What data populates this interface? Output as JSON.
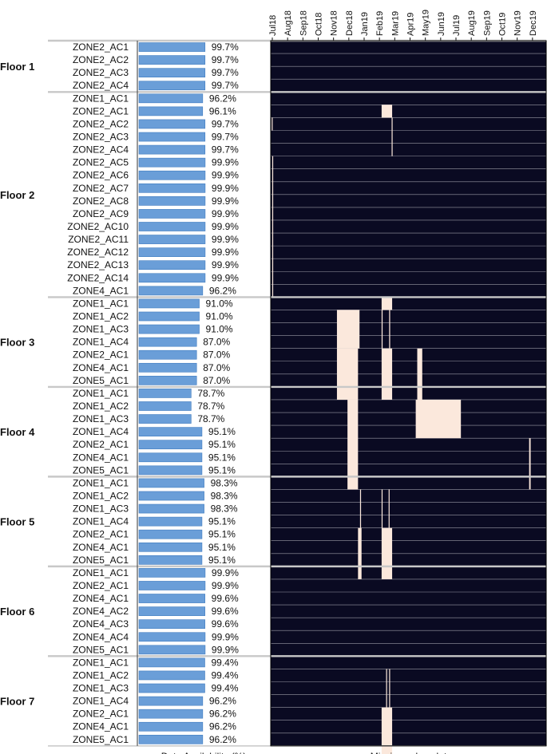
{
  "chart_data": [
    {
      "type": "bar",
      "xlabel": "Data Availability (%)",
      "floors": [
        {
          "name": "Floor 1",
          "rows": [
            {
              "zone": "ZONE2_AC1",
              "pct": 99.7,
              "label": "99.7%"
            },
            {
              "zone": "ZONE2_AC2",
              "pct": 99.7,
              "label": "99.7%"
            },
            {
              "zone": "ZONE2_AC3",
              "pct": 99.7,
              "label": "99.7%"
            },
            {
              "zone": "ZONE2_AC4",
              "pct": 99.7,
              "label": "99.7%"
            }
          ]
        },
        {
          "name": "Floor 2",
          "rows": [
            {
              "zone": "ZONE1_AC1",
              "pct": 96.2,
              "label": "96.2%"
            },
            {
              "zone": "ZONE2_AC1",
              "pct": 96.1,
              "label": "96.1%"
            },
            {
              "zone": "ZONE2_AC2",
              "pct": 99.7,
              "label": "99.7%"
            },
            {
              "zone": "ZONE2_AC3",
              "pct": 99.7,
              "label": "99.7%"
            },
            {
              "zone": "ZONE2_AC4",
              "pct": 99.7,
              "label": "99.7%"
            },
            {
              "zone": "ZONE2_AC5",
              "pct": 99.9,
              "label": "99.9%"
            },
            {
              "zone": "ZONE2_AC6",
              "pct": 99.9,
              "label": "99.9%"
            },
            {
              "zone": "ZONE2_AC7",
              "pct": 99.9,
              "label": "99.9%"
            },
            {
              "zone": "ZONE2_AC8",
              "pct": 99.9,
              "label": "99.9%"
            },
            {
              "zone": "ZONE2_AC9",
              "pct": 99.9,
              "label": "99.9%"
            },
            {
              "zone": "ZONE2_AC10",
              "pct": 99.9,
              "label": "99.9%"
            },
            {
              "zone": "ZONE2_AC11",
              "pct": 99.9,
              "label": "99.9%"
            },
            {
              "zone": "ZONE2_AC12",
              "pct": 99.9,
              "label": "99.9%"
            },
            {
              "zone": "ZONE2_AC13",
              "pct": 99.9,
              "label": "99.9%"
            },
            {
              "zone": "ZONE2_AC14",
              "pct": 99.9,
              "label": "99.9%"
            },
            {
              "zone": "ZONE4_AC1",
              "pct": 96.2,
              "label": "96.2%"
            }
          ]
        },
        {
          "name": "Floor 3",
          "rows": [
            {
              "zone": "ZONE1_AC1",
              "pct": 91.0,
              "label": "91.0%"
            },
            {
              "zone": "ZONE1_AC2",
              "pct": 91.0,
              "label": "91.0%"
            },
            {
              "zone": "ZONE1_AC3",
              "pct": 91.0,
              "label": "91.0%"
            },
            {
              "zone": "ZONE1_AC4",
              "pct": 87.0,
              "label": "87.0%"
            },
            {
              "zone": "ZONE2_AC1",
              "pct": 87.0,
              "label": "87.0%"
            },
            {
              "zone": "ZONE4_AC1",
              "pct": 87.0,
              "label": "87.0%"
            },
            {
              "zone": "ZONE5_AC1",
              "pct": 87.0,
              "label": "87.0%"
            }
          ]
        },
        {
          "name": "Floor 4",
          "rows": [
            {
              "zone": "ZONE1_AC1",
              "pct": 78.7,
              "label": "78.7%"
            },
            {
              "zone": "ZONE1_AC2",
              "pct": 78.7,
              "label": "78.7%"
            },
            {
              "zone": "ZONE1_AC3",
              "pct": 78.7,
              "label": "78.7%"
            },
            {
              "zone": "ZONE1_AC4",
              "pct": 95.1,
              "label": "95.1%"
            },
            {
              "zone": "ZONE2_AC1",
              "pct": 95.1,
              "label": "95.1%"
            },
            {
              "zone": "ZONE4_AC1",
              "pct": 95.1,
              "label": "95.1%"
            },
            {
              "zone": "ZONE5_AC1",
              "pct": 95.1,
              "label": "95.1%"
            }
          ]
        },
        {
          "name": "Floor 5",
          "rows": [
            {
              "zone": "ZONE1_AC1",
              "pct": 98.3,
              "label": "98.3%"
            },
            {
              "zone": "ZONE1_AC2",
              "pct": 98.3,
              "label": "98.3%"
            },
            {
              "zone": "ZONE1_AC3",
              "pct": 98.3,
              "label": "98.3%"
            },
            {
              "zone": "ZONE1_AC4",
              "pct": 95.1,
              "label": "95.1%"
            },
            {
              "zone": "ZONE2_AC1",
              "pct": 95.1,
              "label": "95.1%"
            },
            {
              "zone": "ZONE4_AC1",
              "pct": 95.1,
              "label": "95.1%"
            },
            {
              "zone": "ZONE5_AC1",
              "pct": 95.1,
              "label": "95.1%"
            }
          ]
        },
        {
          "name": "Floor 6",
          "rows": [
            {
              "zone": "ZONE1_AC1",
              "pct": 99.9,
              "label": "99.9%"
            },
            {
              "zone": "ZONE2_AC1",
              "pct": 99.9,
              "label": "99.9%"
            },
            {
              "zone": "ZONE4_AC1",
              "pct": 99.6,
              "label": "99.6%"
            },
            {
              "zone": "ZONE4_AC2",
              "pct": 99.6,
              "label": "99.6%"
            },
            {
              "zone": "ZONE4_AC3",
              "pct": 99.6,
              "label": "99.6%"
            },
            {
              "zone": "ZONE4_AC4",
              "pct": 99.9,
              "label": "99.9%"
            },
            {
              "zone": "ZONE5_AC1",
              "pct": 99.9,
              "label": "99.9%"
            }
          ]
        },
        {
          "name": "Floor 7",
          "rows": [
            {
              "zone": "ZONE1_AC1",
              "pct": 99.4,
              "label": "99.4%"
            },
            {
              "zone": "ZONE1_AC2",
              "pct": 99.4,
              "label": "99.4%"
            },
            {
              "zone": "ZONE1_AC3",
              "pct": 99.4,
              "label": "99.4%"
            },
            {
              "zone": "ZONE1_AC4",
              "pct": 96.2,
              "label": "96.2%"
            },
            {
              "zone": "ZONE2_AC1",
              "pct": 96.2,
              "label": "96.2%"
            },
            {
              "zone": "ZONE4_AC1",
              "pct": 96.2,
              "label": "96.2%"
            },
            {
              "zone": "ZONE5_AC1",
              "pct": 96.2,
              "label": "96.2%"
            }
          ]
        }
      ]
    },
    {
      "type": "heatmap",
      "xlabel": "Missing value plot",
      "months": [
        "Jul18",
        "Aug18",
        "Sep18",
        "Oct18",
        "Nov18",
        "Dec18",
        "Jan19",
        "Feb19",
        "Mar19",
        "Apr19",
        "May19",
        "Jun19",
        "Jul19",
        "Aug19",
        "Sep19",
        "Oct19",
        "Nov19",
        "Dec19"
      ],
      "time_range": [
        "2018-07-01",
        "2019-12-31"
      ],
      "gaps": [
        {
          "rows": [
            5,
            5
          ],
          "start": "2019-02-07",
          "end": "2019-02-28"
        },
        {
          "rows": [
            6,
            6
          ],
          "start": "2018-07-03",
          "end": "2018-07-04"
        },
        {
          "rows": [
            6,
            8
          ],
          "start": "2019-02-27",
          "end": "2019-02-28"
        },
        {
          "rows": [
            9,
            19
          ],
          "start": "2018-07-04",
          "end": "2018-07-05"
        },
        {
          "rows": [
            20,
            20
          ],
          "start": "2019-02-07",
          "end": "2019-02-28"
        },
        {
          "rows": [
            21,
            23
          ],
          "start": "2018-11-10",
          "end": "2018-12-25"
        },
        {
          "rows": [
            24,
            27
          ],
          "start": "2018-11-10",
          "end": "2018-12-22"
        },
        {
          "rows": [
            21,
            23
          ],
          "start": "2019-02-07",
          "end": "2019-02-09"
        },
        {
          "rows": [
            21,
            23
          ],
          "start": "2019-02-22",
          "end": "2019-02-24"
        },
        {
          "rows": [
            24,
            27
          ],
          "start": "2019-02-07",
          "end": "2019-02-28"
        },
        {
          "rows": [
            24,
            27
          ],
          "start": "2019-04-19",
          "end": "2019-04-29"
        },
        {
          "rows": [
            28,
            34
          ],
          "start": "2018-12-01",
          "end": "2018-12-22"
        },
        {
          "rows": [
            28,
            30
          ],
          "start": "2019-04-16",
          "end": "2019-07-15"
        },
        {
          "rows": [
            31,
            34
          ],
          "start": "2019-11-28",
          "end": "2019-12-01"
        },
        {
          "rows": [
            35,
            37
          ],
          "start": "2018-12-26",
          "end": "2018-12-28"
        },
        {
          "rows": [
            35,
            37
          ],
          "start": "2019-02-07",
          "end": "2019-02-08"
        },
        {
          "rows": [
            35,
            37
          ],
          "start": "2019-02-21",
          "end": "2019-02-22"
        },
        {
          "rows": [
            38,
            41
          ],
          "start": "2018-12-22",
          "end": "2018-12-29"
        },
        {
          "rows": [
            38,
            41
          ],
          "start": "2019-02-07",
          "end": "2019-02-28"
        },
        {
          "rows": [
            49,
            51
          ],
          "start": "2019-02-16",
          "end": "2019-02-17"
        },
        {
          "rows": [
            49,
            51
          ],
          "start": "2019-02-22",
          "end": "2019-02-23"
        },
        {
          "rows": [
            52,
            55
          ],
          "start": "2019-02-07",
          "end": "2019-02-28"
        }
      ]
    }
  ],
  "colors": {
    "bar": "#6a9ed8",
    "bar_edge": "#3f7bbf",
    "heatmap_bg": "#0a0a22",
    "gap": "#fbe8dc",
    "row_line": "#9a9aa6",
    "separator": "#c8c8c8",
    "text": "#111111"
  }
}
